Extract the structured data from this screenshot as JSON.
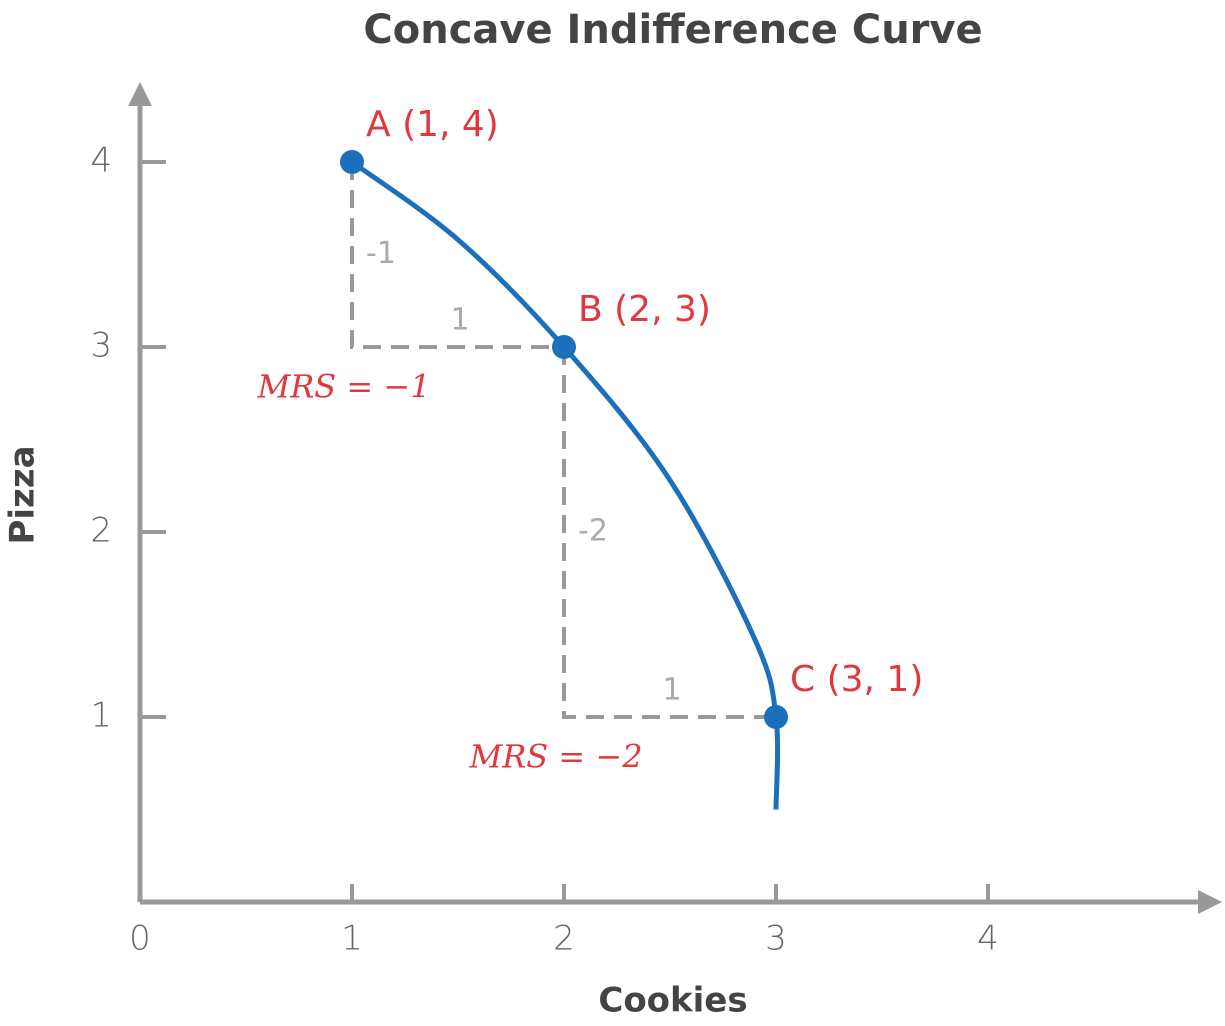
{
  "chart_data": {
    "type": "line",
    "title": "Concave Indifference Curve",
    "x_label": "Cookies",
    "y_label": "Pizza",
    "xlim": [
      0,
      5.1
    ],
    "ylim": [
      0,
      4.4
    ],
    "xticks": [
      0,
      1,
      2,
      3,
      4
    ],
    "yticks": [
      1,
      2,
      3,
      4
    ],
    "series": [
      {
        "color": "#1b6fbb",
        "x": [
          1,
          1.5,
          2,
          2.5,
          2.9,
          3,
          3
        ],
        "values": [
          4,
          3.58,
          3,
          2.28,
          1.42,
          1,
          0.5
        ]
      }
    ],
    "points": [
      {
        "label": "A (1, 4)",
        "x": 1,
        "y": 4
      },
      {
        "label": "B (2, 3)",
        "x": 2,
        "y": 3
      },
      {
        "label": "C (3, 1)",
        "x": 3,
        "y": 1
      }
    ],
    "point_color": "#1b6fbb",
    "label_color": "#e0383e",
    "steps": [
      {
        "rise": -1,
        "run": 1,
        "label": "MRS = −1"
      },
      {
        "rise": -2,
        "run": 1,
        "label": "MRS = −2"
      }
    ]
  }
}
